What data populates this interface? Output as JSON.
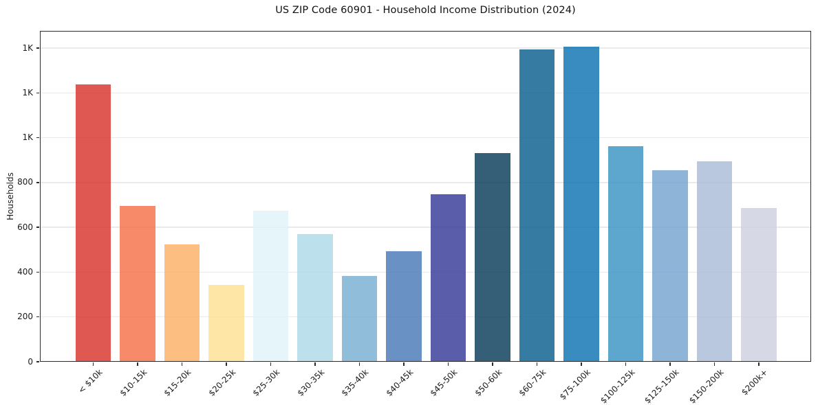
{
  "chart_data": {
    "type": "bar",
    "title": "US ZIP Code 60901 - Household Income Distribution (2024)",
    "xlabel": "",
    "ylabel": "Households",
    "categories": [
      "< $10k",
      "$10-15k",
      "$15-20k",
      "$20-25k",
      "$25-30k",
      "$30-35k",
      "$35-40k",
      "$40-45k",
      "$45-50k",
      "$50-60k",
      "$60-75k",
      "$75-100k",
      "$100-125k",
      "$125-150k",
      "$150-200k",
      "$200k+"
    ],
    "values": [
      1237,
      696,
      525,
      343,
      673,
      571,
      383,
      494,
      747,
      931,
      1394,
      1406,
      961,
      855,
      895,
      688
    ],
    "bar_colors": [
      "rgba(215,48,39,0.8)",
      "rgba(244,109,67,0.8)",
      "rgba(253,174,97,0.8)",
      "rgba(254,224,144,0.8)",
      "rgba(224,243,248,0.8)",
      "rgba(171,217,233,0.8)",
      "rgba(116,173,209,0.8)",
      "rgba(69,117,180,0.8)",
      "rgba(49,54,149,0.8)",
      "rgba(3,55,85,0.8)",
      "rgba(4,91,139,0.8)",
      "rgba(8,111,175,0.8)",
      "rgba(53,144,193,0.8)",
      "rgba(114,163,206,0.8)",
      "rgba(168,186,215,0.8)",
      "rgba(205,206,224,0.8)"
    ],
    "ylim": [
      0,
      1477
    ],
    "yticks": {
      "values": [
        0,
        200,
        400,
        600,
        800,
        1000,
        1200,
        1400
      ],
      "labels": [
        "0",
        "200",
        "400",
        "600",
        "800",
        "1K",
        "1K",
        "1K"
      ]
    },
    "grid": "horizontal",
    "legend": "none"
  },
  "style": {
    "background": "#ffffff",
    "grid_color": "#eaeaee",
    "spine_color": "#2a2a2a",
    "text_color": "#1a1a1a"
  }
}
